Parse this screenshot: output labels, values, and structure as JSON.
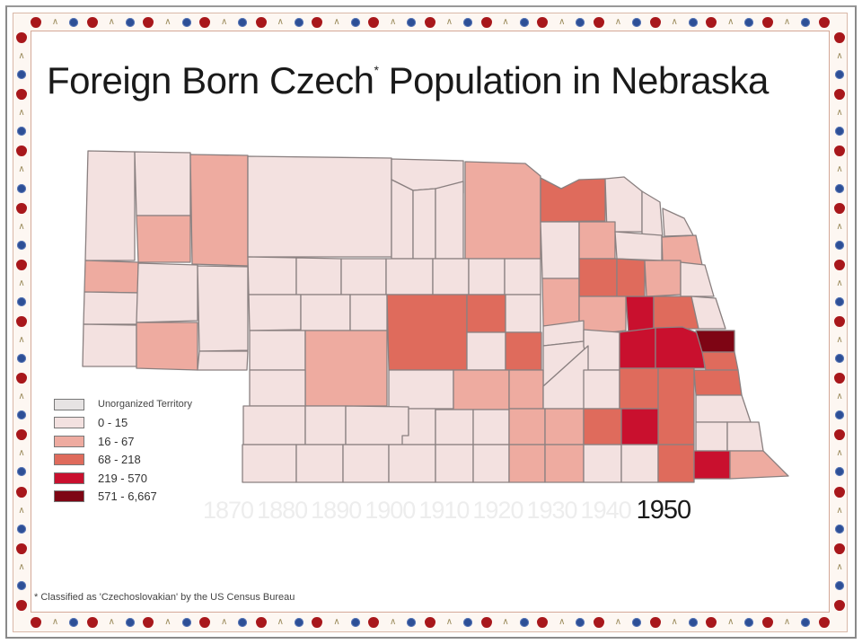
{
  "title": {
    "text": "Foreign Born Czech",
    "superscript": "*",
    "text_after": " Population in Nebraska"
  },
  "legend": {
    "items": [
      {
        "label": "Unorganized Territory",
        "color": "#e6e3e3"
      },
      {
        "label": "0 - 15",
        "color": "#f3e1e0"
      },
      {
        "label": "16 - 67",
        "color": "#eeaba0"
      },
      {
        "label": "68 - 218",
        "color": "#df6b5c"
      },
      {
        "label": "219 - 570",
        "color": "#c9102e"
      },
      {
        "label": "571 - 6,667",
        "color": "#7e0514"
      }
    ]
  },
  "timeline": {
    "years": [
      "1870",
      "1880",
      "1890",
      "1900",
      "1910",
      "1920",
      "1930",
      "1940",
      "1950"
    ],
    "selected": "1950"
  },
  "footnote": "* Classified as 'Czechoslovakian' by the US Census Bureau",
  "colors": {
    "border_heart": "#a8171b",
    "border_flower": "#2d4f96",
    "border_bird": "#9a8a5a",
    "county_outline": "#8a8080"
  },
  "map": {
    "state": "Nebraska",
    "census_year": "1950",
    "class_keys": [
      "0-15",
      "16-67",
      "68-218",
      "219-570",
      "571-6,667"
    ]
  }
}
